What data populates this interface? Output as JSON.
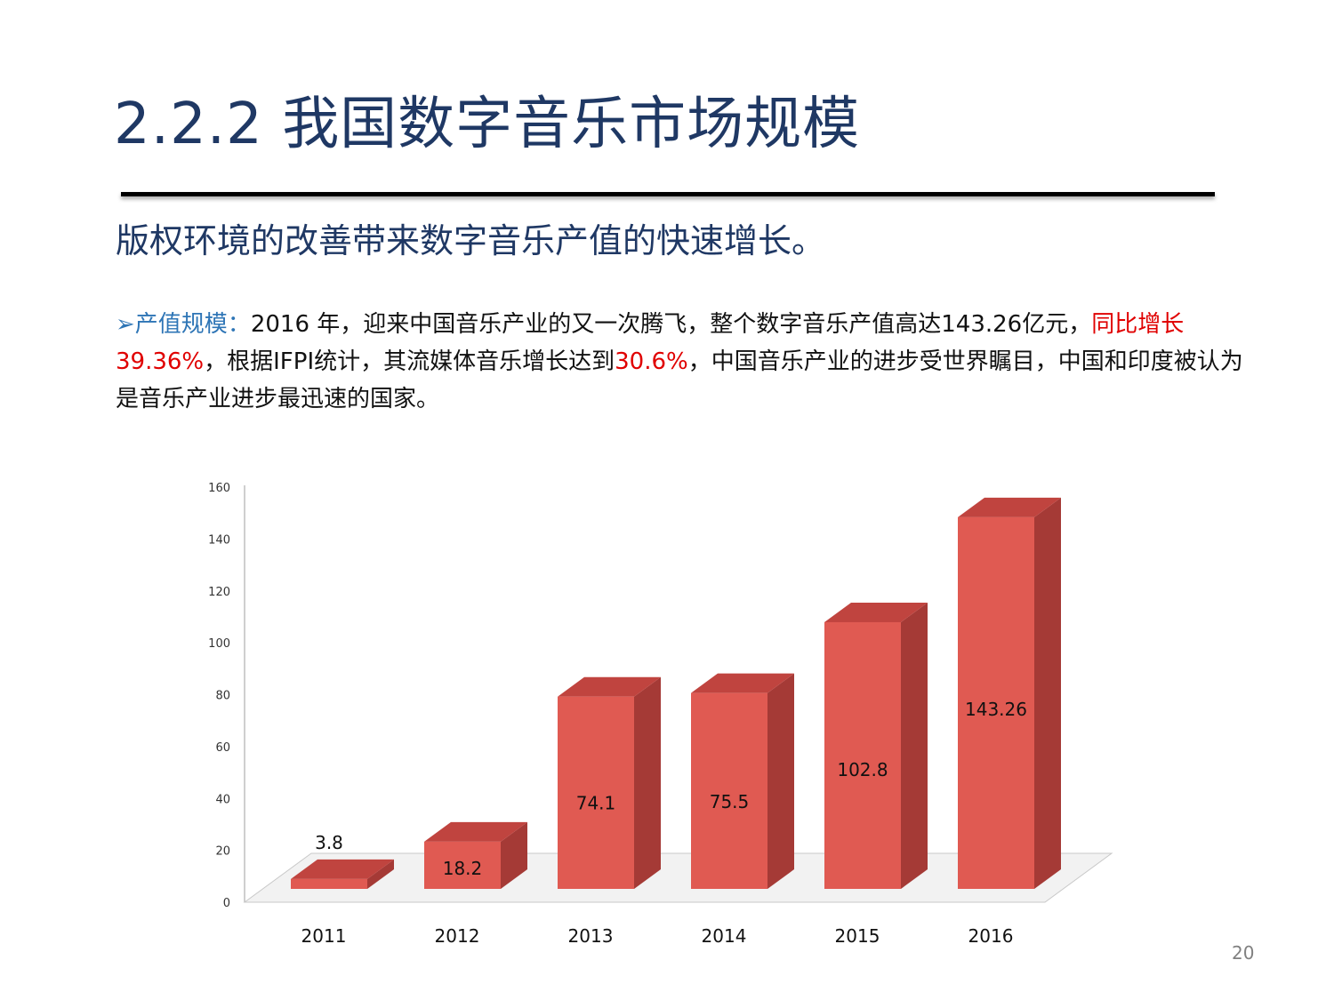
{
  "slide": {
    "title": "2.2.2 我国数字音乐市场规模",
    "subtitle": "版权环境的改善带来数字音乐产值的快速增长。",
    "bullet_marker": "➢",
    "para_lead": "产值规模：",
    "para_1": "2016 年，迎来中国音乐产业的又一次腾飞，整个数字音乐产值高达143.26亿元，",
    "para_red_1": "同比增长39.36%",
    "para_2": "，根据IFPI统计，其流媒体音乐增长达到",
    "para_red_2": "30.6%",
    "para_3": "，中国音乐产业的进步受世界瞩目，中国和印度被认为是音乐产业进步最迅速的国家。",
    "page_number": "20"
  },
  "colors": {
    "title": "#1f3864",
    "bar_front": "#e05a52",
    "bar_side": "#a53a36",
    "bar_top": "#c0443f",
    "highlight": "#e00000"
  },
  "chart_data": {
    "type": "bar",
    "categories": [
      "2011",
      "2012",
      "2013",
      "2014",
      "2015",
      "2016"
    ],
    "values": [
      3.8,
      18.2,
      74.1,
      75.5,
      102.8,
      143.26
    ],
    "data_labels": [
      "3.8",
      "18.2",
      "74.1",
      "75.5",
      "102.8",
      "143.26"
    ],
    "yticks": [
      "0",
      "20",
      "40",
      "60",
      "80",
      "100",
      "120",
      "140",
      "160"
    ],
    "ylim": [
      0,
      160
    ],
    "style": "3d",
    "title": "",
    "xlabel": "",
    "ylabel": ""
  }
}
